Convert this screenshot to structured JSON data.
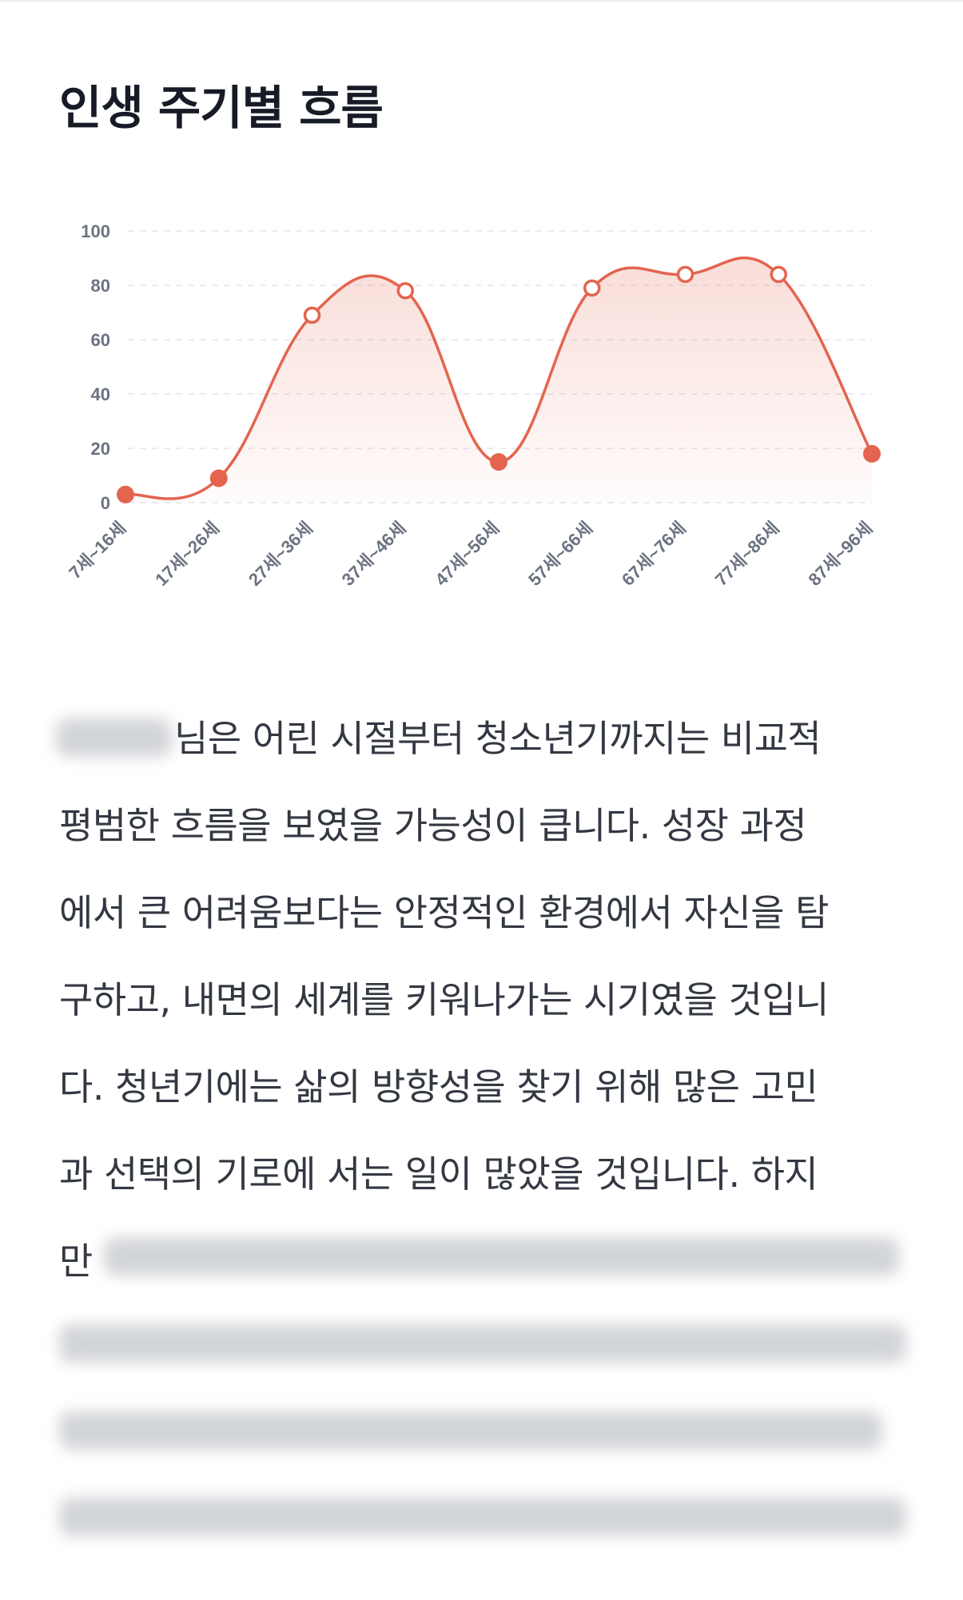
{
  "chart_data": {
    "type": "line",
    "title": "인생 주기별 흐름",
    "categories": [
      "7세~16세",
      "17세~26세",
      "27세~36세",
      "37세~46세",
      "47세~56세",
      "57세~66세",
      "67세~76세",
      "77세~86세",
      "87세~96세"
    ],
    "values": [
      3,
      9,
      69,
      78,
      15,
      79,
      84,
      84,
      18
    ],
    "color": "#e4644f",
    "ylim": [
      0,
      100
    ],
    "yticks": [
      0,
      20,
      40,
      60,
      80,
      100
    ],
    "grid": true
  },
  "body": {
    "lines": [
      "님은 어린 시절부터 청소년기까지는 비교적",
      "평범한 흐름을 보였을 가능성이 큽니다. 성장 과정",
      "에서 큰 어려움보다는 안정적인 환경에서 자신을 탐",
      "구하고, 내면의 세계를 키워나가는 시기였을 것입니",
      "다. 청년기에는 삶의 방향성을 찾기 위해 많은 고민",
      "과 선택의 기로에 서는 일이 많았을 것입니다. 하지",
      "만"
    ]
  }
}
